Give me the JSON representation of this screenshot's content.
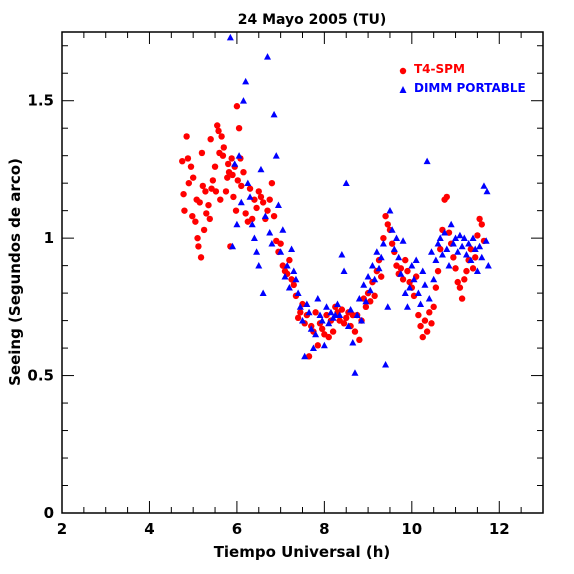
{
  "chart_data": {
    "type": "scatter",
    "title": "24 Mayo 2005 (TU)",
    "xlabel": "Tiempo Universal (h)",
    "ylabel": "Seeing (Segundos de arco)",
    "xlim": [
      2,
      13
    ],
    "ylim": [
      0,
      1.75
    ],
    "x_ticks": [
      2,
      4,
      6,
      8,
      10,
      12
    ],
    "x_tick_labels": [
      "2",
      "4",
      "6",
      "8",
      "10",
      "12"
    ],
    "y_ticks": [
      0,
      0.5,
      1,
      1.5
    ],
    "y_tick_labels": [
      "0",
      "0.5",
      "1",
      "1.5"
    ],
    "legend_position": "top-right",
    "series": [
      {
        "name": "T4-SPM",
        "marker": "circle",
        "color": "#ff0000",
        "points": [
          [
            4.75,
            1.28
          ],
          [
            4.78,
            1.16
          ],
          [
            4.8,
            1.1
          ],
          [
            4.85,
            1.37
          ],
          [
            4.88,
            1.29
          ],
          [
            4.9,
            1.2
          ],
          [
            4.95,
            1.26
          ],
          [
            4.98,
            1.08
          ],
          [
            5.0,
            1.22
          ],
          [
            5.05,
            1.06
          ],
          [
            5.08,
            1.14
          ],
          [
            5.1,
            1.0
          ],
          [
            5.12,
            0.97
          ],
          [
            5.15,
            1.13
          ],
          [
            5.18,
            0.93
          ],
          [
            5.2,
            1.31
          ],
          [
            5.22,
            1.19
          ],
          [
            5.25,
            1.03
          ],
          [
            5.28,
            1.17
          ],
          [
            5.3,
            1.09
          ],
          [
            5.35,
            1.12
          ],
          [
            5.38,
            1.07
          ],
          [
            5.4,
            1.36
          ],
          [
            5.42,
            1.18
          ],
          [
            5.45,
            1.21
          ],
          [
            5.5,
            1.26
          ],
          [
            5.52,
            1.17
          ],
          [
            5.55,
            1.41
          ],
          [
            5.58,
            1.39
          ],
          [
            5.6,
            1.31
          ],
          [
            5.62,
            1.14
          ],
          [
            5.65,
            1.37
          ],
          [
            5.68,
            1.3
          ],
          [
            5.7,
            1.33
          ],
          [
            5.75,
            1.17
          ],
          [
            5.78,
            1.22
          ],
          [
            5.8,
            1.27
          ],
          [
            5.82,
            1.24
          ],
          [
            5.85,
            0.97
          ],
          [
            5.88,
            1.29
          ],
          [
            5.9,
            1.23
          ],
          [
            5.92,
            1.15
          ],
          [
            5.95,
            1.26
          ],
          [
            5.98,
            1.1
          ],
          [
            6.0,
            1.48
          ],
          [
            6.02,
            1.21
          ],
          [
            6.05,
            1.4
          ],
          [
            6.08,
            1.29
          ],
          [
            6.1,
            1.19
          ],
          [
            6.15,
            1.24
          ],
          [
            6.2,
            1.09
          ],
          [
            6.25,
            1.06
          ],
          [
            6.3,
            1.18
          ],
          [
            6.35,
            1.07
          ],
          [
            6.4,
            1.14
          ],
          [
            6.45,
            1.11
          ],
          [
            6.5,
            1.17
          ],
          [
            6.55,
            1.15
          ],
          [
            6.6,
            1.13
          ],
          [
            6.65,
            1.07
          ],
          [
            6.7,
            1.1
          ],
          [
            6.75,
            1.14
          ],
          [
            6.8,
            1.2
          ],
          [
            6.85,
            1.08
          ],
          [
            6.9,
            0.99
          ],
          [
            6.95,
            0.95
          ],
          [
            7.0,
            0.98
          ],
          [
            7.05,
            0.9
          ],
          [
            7.1,
            0.88
          ],
          [
            7.15,
            0.87
          ],
          [
            7.2,
            0.92
          ],
          [
            7.25,
            0.85
          ],
          [
            7.3,
            0.83
          ],
          [
            7.35,
            0.79
          ],
          [
            7.4,
            0.71
          ],
          [
            7.45,
            0.73
          ],
          [
            7.5,
            0.76
          ],
          [
            7.55,
            0.69
          ],
          [
            7.6,
            0.72
          ],
          [
            7.65,
            0.57
          ],
          [
            7.7,
            0.68
          ],
          [
            7.75,
            0.66
          ],
          [
            7.8,
            0.73
          ],
          [
            7.85,
            0.61
          ],
          [
            7.9,
            0.69
          ],
          [
            7.95,
            0.67
          ],
          [
            8.0,
            0.65
          ],
          [
            8.05,
            0.72
          ],
          [
            8.1,
            0.64
          ],
          [
            8.15,
            0.7
          ],
          [
            8.2,
            0.66
          ],
          [
            8.25,
            0.75
          ],
          [
            8.3,
            0.73
          ],
          [
            8.35,
            0.7
          ],
          [
            8.4,
            0.74
          ],
          [
            8.45,
            0.69
          ],
          [
            8.5,
            0.71
          ],
          [
            8.55,
            0.73
          ],
          [
            8.6,
            0.68
          ],
          [
            8.65,
            0.72
          ],
          [
            8.7,
            0.66
          ],
          [
            8.75,
            0.72
          ],
          [
            8.8,
            0.63
          ],
          [
            8.85,
            0.7
          ],
          [
            8.9,
            0.78
          ],
          [
            8.95,
            0.75
          ],
          [
            9.0,
            0.8
          ],
          [
            9.05,
            0.77
          ],
          [
            9.1,
            0.84
          ],
          [
            9.15,
            0.79
          ],
          [
            9.2,
            0.88
          ],
          [
            9.25,
            0.92
          ],
          [
            9.3,
            0.86
          ],
          [
            9.35,
            1.0
          ],
          [
            9.4,
            1.08
          ],
          [
            9.45,
            1.05
          ],
          [
            9.5,
            1.03
          ],
          [
            9.55,
            0.98
          ],
          [
            9.6,
            0.95
          ],
          [
            9.65,
            0.9
          ],
          [
            9.7,
            0.87
          ],
          [
            9.75,
            0.89
          ],
          [
            9.8,
            0.85
          ],
          [
            9.85,
            0.92
          ],
          [
            9.9,
            0.88
          ],
          [
            9.95,
            0.84
          ],
          [
            10.0,
            0.82
          ],
          [
            10.05,
            0.79
          ],
          [
            10.1,
            0.86
          ],
          [
            10.15,
            0.72
          ],
          [
            10.2,
            0.68
          ],
          [
            10.25,
            0.64
          ],
          [
            10.3,
            0.7
          ],
          [
            10.35,
            0.66
          ],
          [
            10.4,
            0.73
          ],
          [
            10.45,
            0.69
          ],
          [
            10.5,
            0.75
          ],
          [
            10.55,
            0.82
          ],
          [
            10.6,
            0.88
          ],
          [
            10.65,
            0.96
          ],
          [
            10.7,
            1.03
          ],
          [
            10.75,
            1.14
          ],
          [
            10.8,
            1.15
          ],
          [
            10.85,
            1.02
          ],
          [
            10.9,
            0.98
          ],
          [
            10.95,
            0.93
          ],
          [
            11.0,
            0.89
          ],
          [
            11.05,
            0.84
          ],
          [
            11.1,
            0.82
          ],
          [
            11.15,
            0.78
          ],
          [
            11.2,
            0.85
          ],
          [
            11.25,
            0.88
          ],
          [
            11.3,
            0.92
          ],
          [
            11.35,
            0.96
          ],
          [
            11.4,
            0.89
          ],
          [
            11.45,
            0.93
          ],
          [
            11.5,
            1.01
          ],
          [
            11.55,
            1.07
          ],
          [
            11.6,
            1.05
          ],
          [
            11.65,
            0.99
          ]
        ]
      },
      {
        "name": "DIMM PORTABLE",
        "marker": "triangle",
        "color": "#0000ff",
        "points": [
          [
            5.85,
            1.73
          ],
          [
            5.9,
            0.97
          ],
          [
            5.95,
            1.27
          ],
          [
            6.0,
            1.05
          ],
          [
            6.05,
            1.3
          ],
          [
            6.1,
            1.13
          ],
          [
            6.15,
            1.5
          ],
          [
            6.2,
            1.57
          ],
          [
            6.25,
            1.2
          ],
          [
            6.3,
            1.15
          ],
          [
            6.35,
            1.05
          ],
          [
            6.4,
            1.0
          ],
          [
            6.45,
            0.95
          ],
          [
            6.5,
            0.9
          ],
          [
            6.55,
            1.25
          ],
          [
            6.6,
            0.8
          ],
          [
            6.65,
            1.08
          ],
          [
            6.7,
            1.66
          ],
          [
            6.75,
            1.02
          ],
          [
            6.8,
            0.98
          ],
          [
            6.85,
            1.45
          ],
          [
            6.9,
            1.3
          ],
          [
            6.95,
            1.12
          ],
          [
            7.0,
            0.95
          ],
          [
            7.05,
            1.03
          ],
          [
            7.1,
            0.86
          ],
          [
            7.15,
            0.9
          ],
          [
            7.2,
            0.82
          ],
          [
            7.25,
            0.96
          ],
          [
            7.3,
            0.88
          ],
          [
            7.35,
            0.85
          ],
          [
            7.4,
            0.8
          ],
          [
            7.45,
            0.75
          ],
          [
            7.5,
            0.7
          ],
          [
            7.55,
            0.57
          ],
          [
            7.6,
            0.76
          ],
          [
            7.65,
            0.73
          ],
          [
            7.7,
            0.67
          ],
          [
            7.75,
            0.6
          ],
          [
            7.8,
            0.65
          ],
          [
            7.85,
            0.78
          ],
          [
            7.9,
            0.72
          ],
          [
            7.95,
            0.7
          ],
          [
            8.0,
            0.61
          ],
          [
            8.05,
            0.75
          ],
          [
            8.1,
            0.69
          ],
          [
            8.15,
            0.73
          ],
          [
            8.2,
            0.71
          ],
          [
            8.25,
            0.72
          ],
          [
            8.3,
            0.76
          ],
          [
            8.35,
            0.72
          ],
          [
            8.4,
            0.94
          ],
          [
            8.45,
            0.88
          ],
          [
            8.5,
            1.2
          ],
          [
            8.55,
            0.68
          ],
          [
            8.6,
            0.74
          ],
          [
            8.65,
            0.62
          ],
          [
            8.7,
            0.51
          ],
          [
            8.75,
            0.72
          ],
          [
            8.8,
            0.78
          ],
          [
            8.85,
            0.7
          ],
          [
            8.9,
            0.83
          ],
          [
            8.95,
            0.77
          ],
          [
            9.0,
            0.86
          ],
          [
            9.05,
            0.81
          ],
          [
            9.1,
            0.9
          ],
          [
            9.15,
            0.85
          ],
          [
            9.2,
            0.95
          ],
          [
            9.25,
            0.89
          ],
          [
            9.3,
            0.93
          ],
          [
            9.35,
            0.98
          ],
          [
            9.4,
            0.54
          ],
          [
            9.45,
            0.75
          ],
          [
            9.5,
            1.1
          ],
          [
            9.55,
            1.03
          ],
          [
            9.6,
            0.96
          ],
          [
            9.65,
            1.0
          ],
          [
            9.7,
            0.93
          ],
          [
            9.75,
            0.87
          ],
          [
            9.8,
            0.99
          ],
          [
            9.85,
            0.8
          ],
          [
            9.9,
            0.75
          ],
          [
            9.95,
            0.82
          ],
          [
            10.0,
            0.9
          ],
          [
            10.05,
            0.85
          ],
          [
            10.1,
            0.92
          ],
          [
            10.15,
            0.8
          ],
          [
            10.2,
            0.76
          ],
          [
            10.25,
            0.88
          ],
          [
            10.3,
            0.83
          ],
          [
            10.35,
            1.28
          ],
          [
            10.4,
            0.78
          ],
          [
            10.45,
            0.95
          ],
          [
            10.5,
            0.85
          ],
          [
            10.55,
            0.92
          ],
          [
            10.6,
            0.98
          ],
          [
            10.65,
            1.0
          ],
          [
            10.7,
            0.94
          ],
          [
            10.75,
            1.02
          ],
          [
            10.8,
            0.96
          ],
          [
            10.85,
            0.9
          ],
          [
            10.9,
            1.05
          ],
          [
            10.95,
            0.98
          ],
          [
            11.0,
            1.0
          ],
          [
            11.05,
            0.95
          ],
          [
            11.1,
            1.01
          ],
          [
            11.15,
            0.97
          ],
          [
            11.2,
            1.0
          ],
          [
            11.25,
            0.94
          ],
          [
            11.3,
            0.98
          ],
          [
            11.35,
            0.92
          ],
          [
            11.4,
            1.0
          ],
          [
            11.45,
            0.96
          ],
          [
            11.5,
            0.88
          ],
          [
            11.55,
            0.97
          ],
          [
            11.6,
            0.93
          ],
          [
            11.65,
            1.19
          ],
          [
            11.7,
            0.99
          ],
          [
            11.72,
            1.17
          ],
          [
            11.75,
            0.9
          ]
        ]
      }
    ]
  }
}
